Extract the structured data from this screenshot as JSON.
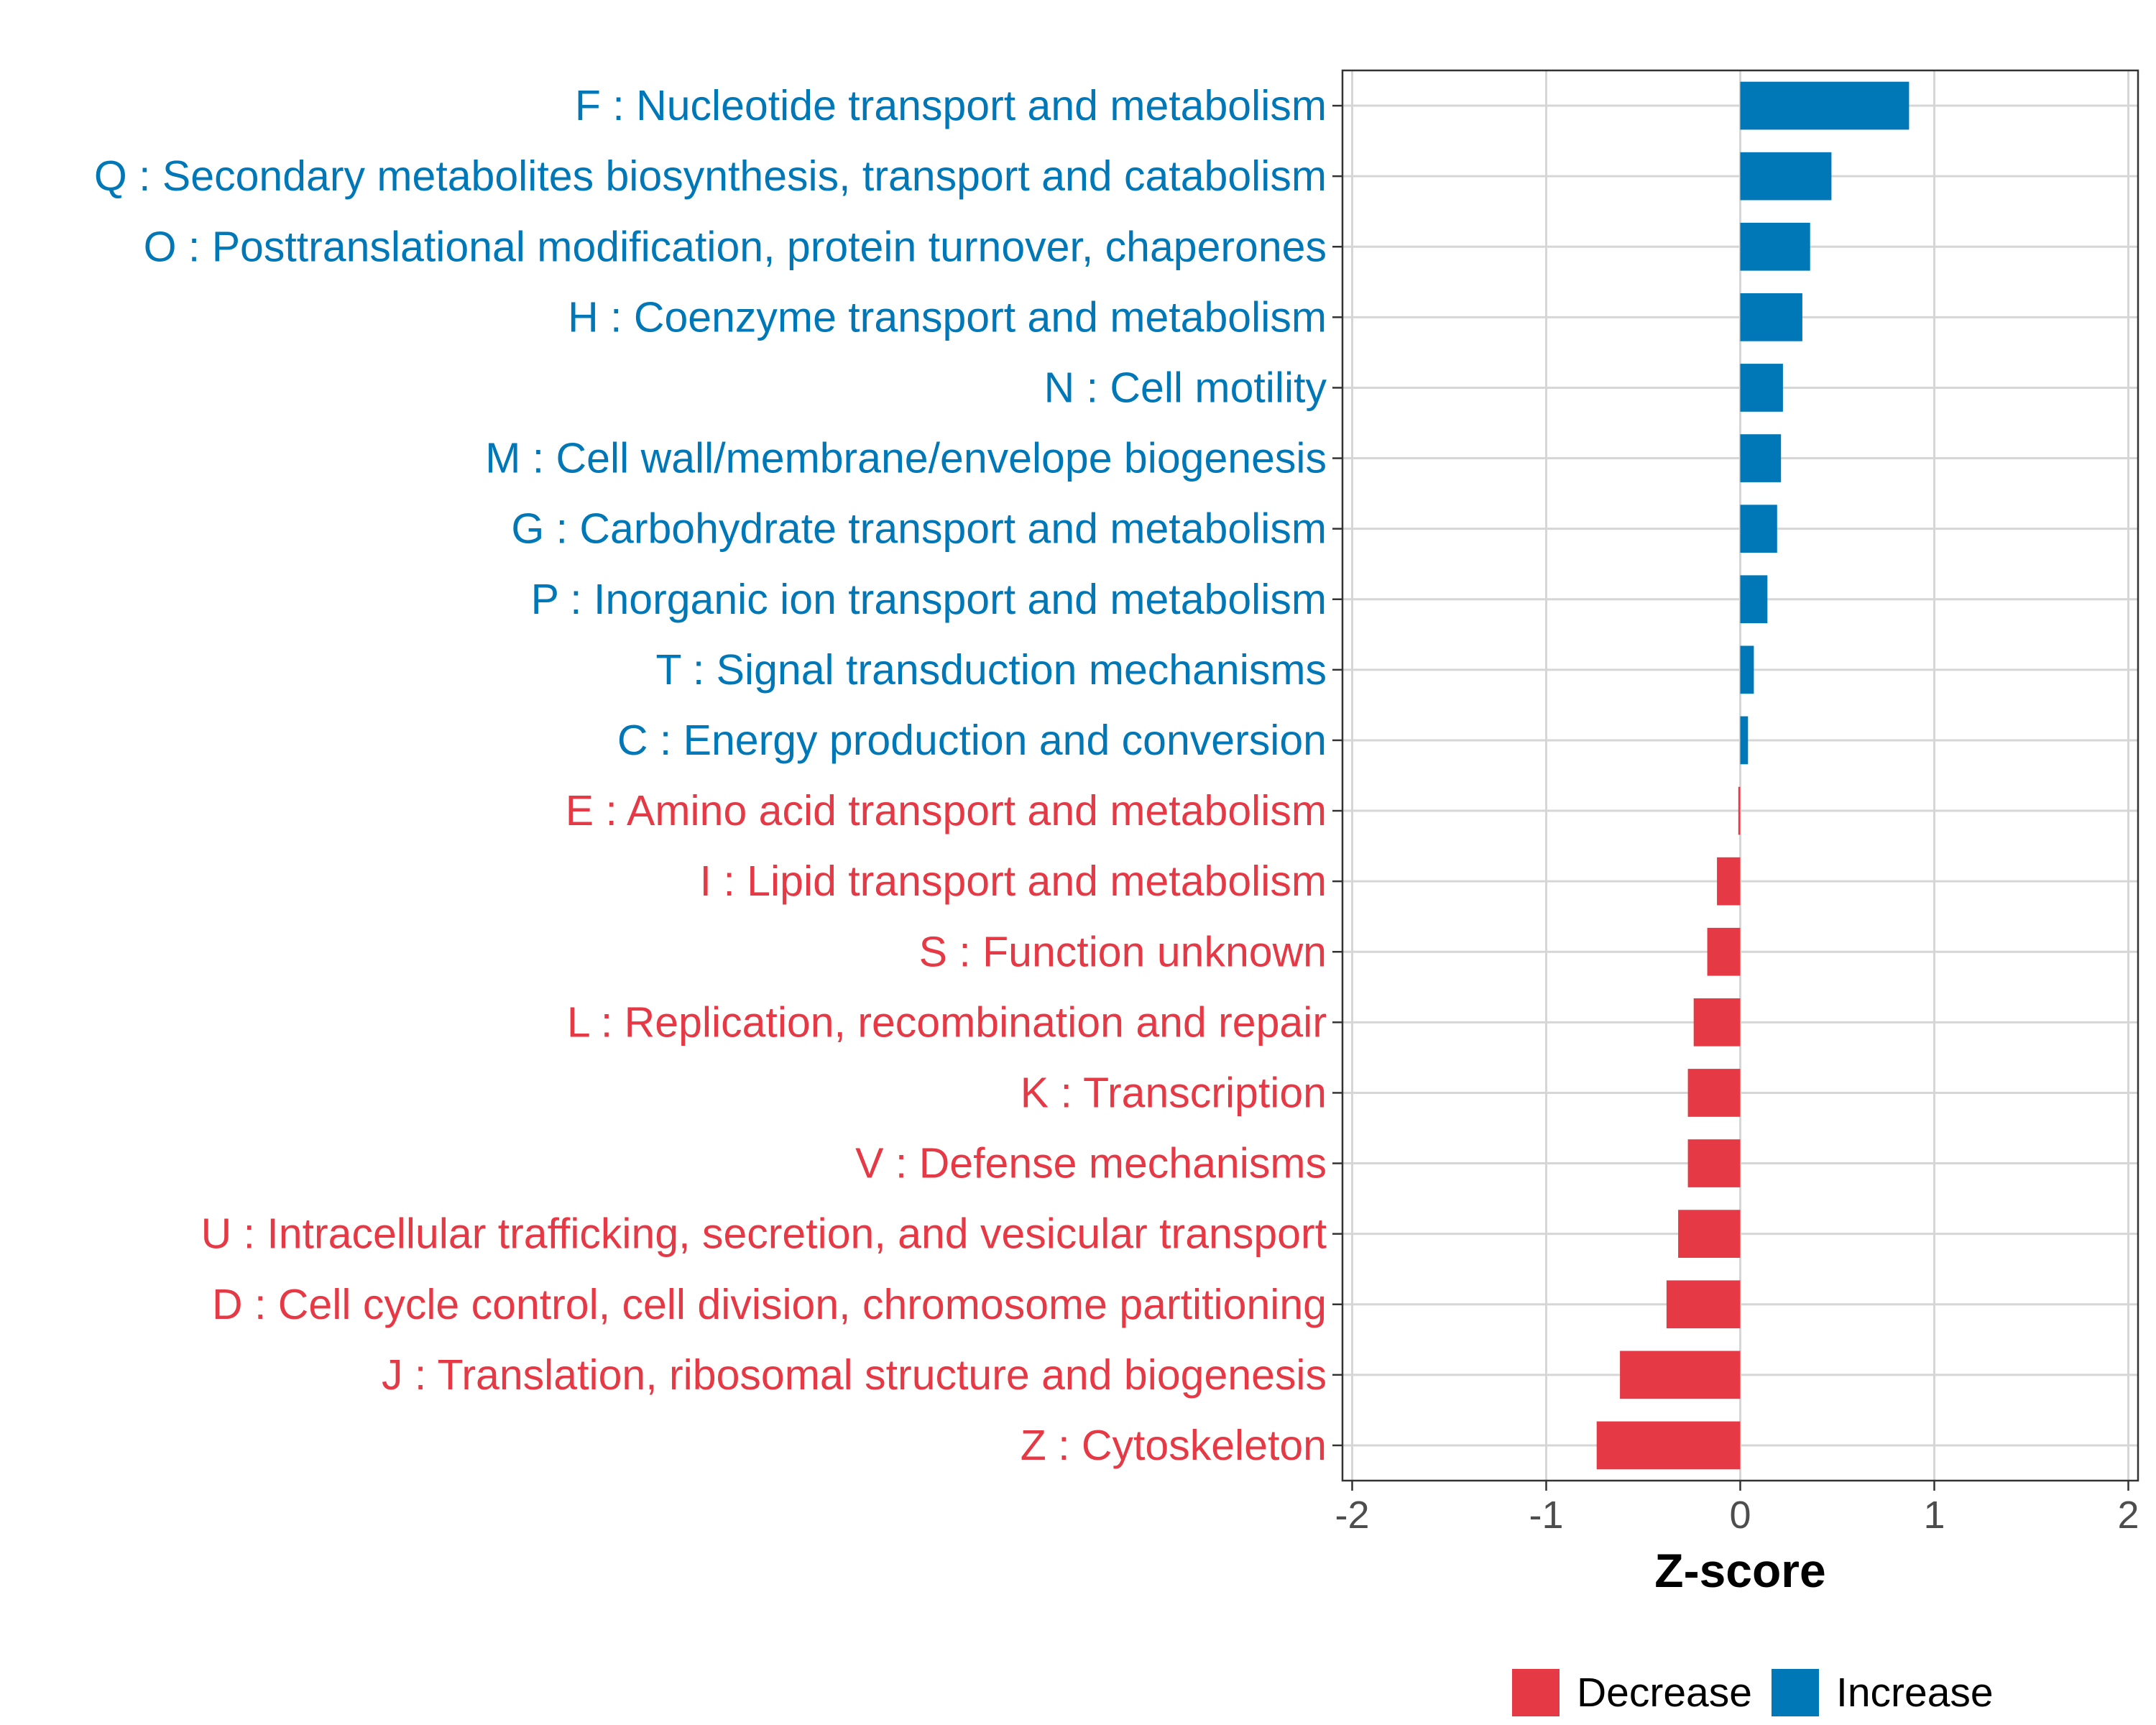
{
  "chart_data": {
    "type": "bar",
    "orientation": "horizontal",
    "xlabel": "Z-score",
    "ylabel": "",
    "xlim": [
      -2.05,
      2.05
    ],
    "xticks": [
      -2,
      -1,
      0,
      1,
      2
    ],
    "xtick_labels": [
      "-2",
      "-1",
      "0",
      "1",
      "2"
    ],
    "grid": true,
    "legend_position": "bottom",
    "colors": {
      "Decrease": "#e63946",
      "Increase": "#0077b6"
    },
    "legend": [
      {
        "key": "Decrease",
        "label": "Decrease"
      },
      {
        "key": "Increase",
        "label": "Increase"
      }
    ],
    "bars": [
      {
        "label": "F : Nucleotide transport and metabolism",
        "value": 0.87,
        "group": "Increase"
      },
      {
        "label": "Q : Secondary metabolites biosynthesis, transport and catabolism",
        "value": 0.47,
        "group": "Increase"
      },
      {
        "label": "O : Posttranslational modification, protein turnover, chaperones",
        "value": 0.36,
        "group": "Increase"
      },
      {
        "label": "H : Coenzyme transport and metabolism",
        "value": 0.32,
        "group": "Increase"
      },
      {
        "label": "N : Cell motility",
        "value": 0.22,
        "group": "Increase"
      },
      {
        "label": "M : Cell wall/membrane/envelope biogenesis",
        "value": 0.21,
        "group": "Increase"
      },
      {
        "label": "G : Carbohydrate transport and metabolism",
        "value": 0.19,
        "group": "Increase"
      },
      {
        "label": "P : Inorganic ion transport and metabolism",
        "value": 0.14,
        "group": "Increase"
      },
      {
        "label": "T : Signal transduction mechanisms",
        "value": 0.07,
        "group": "Increase"
      },
      {
        "label": "C : Energy production and conversion",
        "value": 0.04,
        "group": "Increase"
      },
      {
        "label": "E : Amino acid transport and metabolism",
        "value": -0.01,
        "group": "Decrease"
      },
      {
        "label": "I : Lipid transport and metabolism",
        "value": -0.12,
        "group": "Decrease"
      },
      {
        "label": "S : Function unknown",
        "value": -0.17,
        "group": "Decrease"
      },
      {
        "label": "L : Replication, recombination and repair",
        "value": -0.24,
        "group": "Decrease"
      },
      {
        "label": "K : Transcription",
        "value": -0.27,
        "group": "Decrease"
      },
      {
        "label": "V : Defense mechanisms",
        "value": -0.27,
        "group": "Decrease"
      },
      {
        "label": "U : Intracellular trafficking, secretion, and vesicular transport",
        "value": -0.32,
        "group": "Decrease"
      },
      {
        "label": "D : Cell cycle control, cell division, chromosome partitioning",
        "value": -0.38,
        "group": "Decrease"
      },
      {
        "label": "J : Translation, ribosomal structure and biogenesis",
        "value": -0.62,
        "group": "Decrease"
      },
      {
        "label": "Z : Cytoskeleton",
        "value": -0.74,
        "group": "Decrease"
      }
    ]
  }
}
